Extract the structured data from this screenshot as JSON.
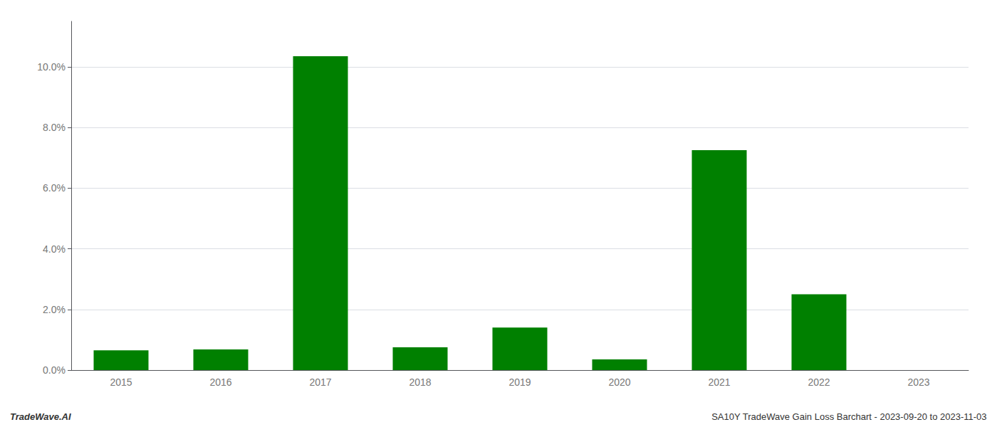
{
  "chart_data": {
    "type": "bar",
    "categories": [
      "2015",
      "2016",
      "2017",
      "2018",
      "2019",
      "2020",
      "2021",
      "2022",
      "2023"
    ],
    "values": [
      0.0065,
      0.0068,
      0.1035,
      0.0075,
      0.014,
      0.0035,
      0.0725,
      0.025,
      0.0
    ],
    "color": "#008000",
    "ylim": [
      0,
      0.115
    ],
    "yticks": [
      {
        "value": 0.0,
        "label": "0.0%"
      },
      {
        "value": 0.02,
        "label": "2.0%"
      },
      {
        "value": 0.04,
        "label": "4.0%"
      },
      {
        "value": 0.06,
        "label": "6.0%"
      },
      {
        "value": 0.08,
        "label": "8.0%"
      },
      {
        "value": 0.1,
        "label": "10.0%"
      }
    ],
    "grid": true,
    "annotations": [
      "TradeWave.AI",
      "SA10Y TradeWave Gain Loss Barchart - 2023-09-20 to 2023-11-03"
    ]
  }
}
